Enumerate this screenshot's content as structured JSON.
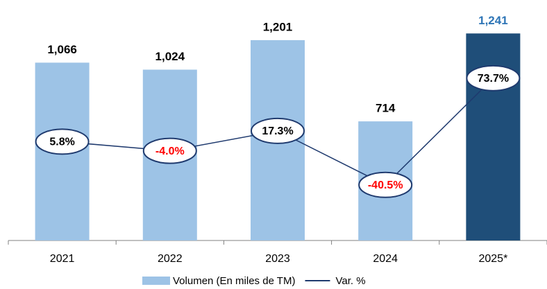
{
  "chart_data": {
    "type": "bar",
    "categories": [
      "2021",
      "2022",
      "2023",
      "2024",
      "2025*"
    ],
    "series": [
      {
        "name": "Volumen (En miles de TM)",
        "type": "bar",
        "color": "#9dc3e6",
        "colors": [
          "#9dc3e6",
          "#9dc3e6",
          "#9dc3e6",
          "#9dc3e6",
          "#1f4e79"
        ],
        "values": [
          1066,
          1024,
          1201,
          714,
          1241
        ],
        "value_labels": [
          "1,066",
          "1,024",
          "1,201",
          "714",
          "1,241"
        ],
        "label_colors": [
          "#000000",
          "#000000",
          "#000000",
          "#000000",
          "#2e75b6"
        ]
      },
      {
        "name": "Var. %",
        "type": "line",
        "axis": "y2",
        "color": "#1f3a6e",
        "values": [
          5.8,
          -4.0,
          17.3,
          -40.5,
          73.7
        ],
        "value_labels": [
          "5.8%",
          "-4.0%",
          "17.3%",
          "-40.5%",
          "73.7%"
        ],
        "label_colors": [
          "#000000",
          "#ff0000",
          "#000000",
          "#ff0000",
          "#000000"
        ]
      }
    ],
    "ylim": [
      0,
      1400
    ],
    "y2lim": [
      -100,
      150
    ],
    "legend": "bottom"
  }
}
